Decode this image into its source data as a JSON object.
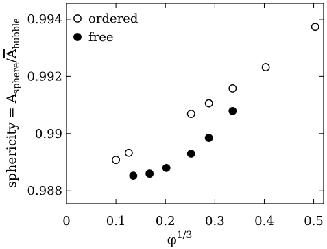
{
  "chart_data": {
    "type": "scatter",
    "xlabel": {
      "base": "φ",
      "sup": "1/3"
    },
    "ylabel": {
      "prefix": "sphericity = A",
      "sub1": "sphere",
      "slash": "/",
      "overbar": "A",
      "sub2": "bubble"
    },
    "xlim": [
      0,
      0.52
    ],
    "ylim": [
      0.98755,
      0.99455
    ],
    "x_ticks": [
      {
        "value": 0,
        "label": "0"
      },
      {
        "value": 0.1,
        "label": "0.1"
      },
      {
        "value": 0.2,
        "label": "0.2"
      },
      {
        "value": 0.3,
        "label": "0.3"
      },
      {
        "value": 0.4,
        "label": "0.4"
      },
      {
        "value": 0.5,
        "label": "0.5"
      }
    ],
    "y_ticks": [
      {
        "value": 0.988,
        "label": "0.988"
      },
      {
        "value": 0.99,
        "label": "0.99"
      },
      {
        "value": 0.992,
        "label": "0.992"
      },
      {
        "value": 0.994,
        "label": "0.994"
      }
    ],
    "legend_position": "top-left",
    "series": [
      {
        "name": "ordered",
        "marker": "open-circle",
        "points": [
          {
            "x": 0.1,
            "y": 0.98908
          },
          {
            "x": 0.126,
            "y": 0.98933
          },
          {
            "x": 0.252,
            "y": 0.99069
          },
          {
            "x": 0.288,
            "y": 0.99106
          },
          {
            "x": 0.336,
            "y": 0.99158
          },
          {
            "x": 0.403,
            "y": 0.99232
          },
          {
            "x": 0.503,
            "y": 0.99373
          }
        ]
      },
      {
        "name": "free",
        "marker": "filled-circle",
        "points": [
          {
            "x": 0.135,
            "y": 0.98853
          },
          {
            "x": 0.168,
            "y": 0.9886
          },
          {
            "x": 0.202,
            "y": 0.9888
          },
          {
            "x": 0.252,
            "y": 0.9893
          },
          {
            "x": 0.288,
            "y": 0.98985
          },
          {
            "x": 0.336,
            "y": 0.99079
          }
        ]
      }
    ]
  }
}
